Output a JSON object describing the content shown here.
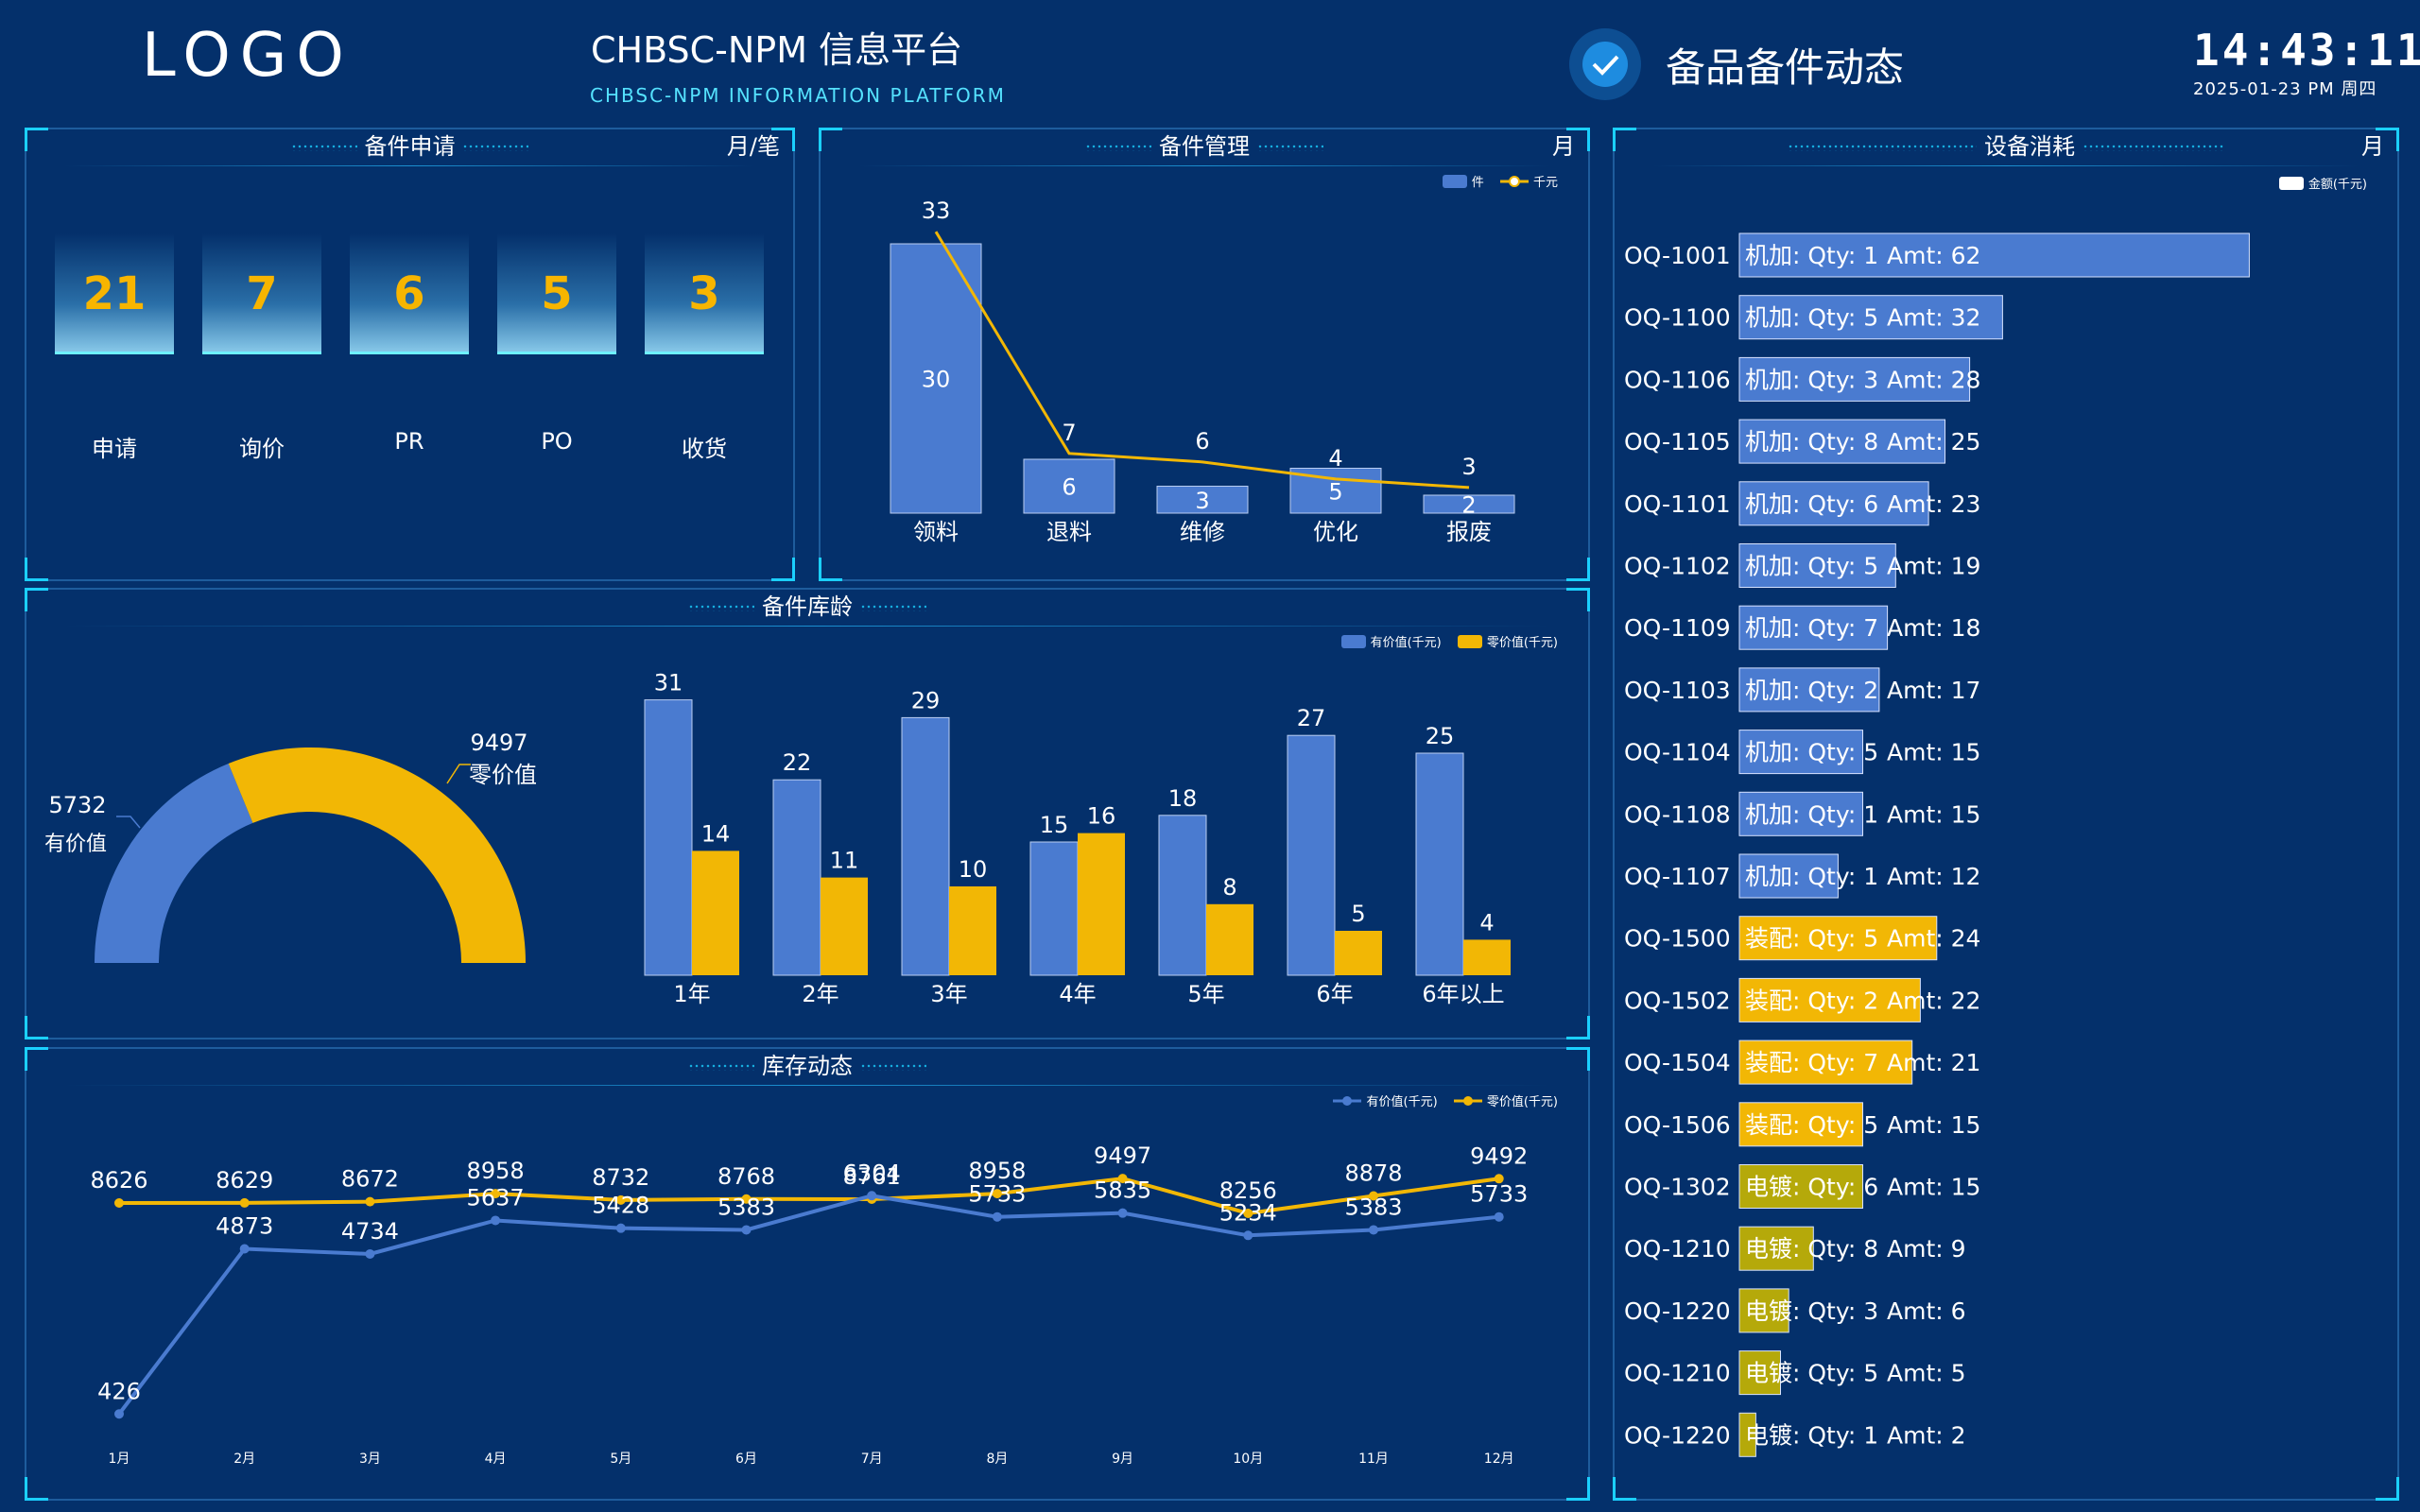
{
  "header": {
    "logo": "LOGO",
    "title": "CHBSC-NPM 信息平台",
    "subtitle": "CHBSC-NPM INFORMATION PLATFORM",
    "module_title": "备品备件动态",
    "module_icon": "badge-check-icon",
    "time": "14:43:11",
    "date": "2025-01-23 PM 周四"
  },
  "colors": {
    "background": "#04306b",
    "blue": "#4a7bd0",
    "yellow": "#f2b705",
    "olive": "#b5a90a",
    "accent": "#1bd0ff"
  },
  "panel_apply": {
    "title": "备件申请",
    "unit": "月/笔",
    "items": [
      {
        "value": "21",
        "label": "申请"
      },
      {
        "value": "7",
        "label": "询价"
      },
      {
        "value": "6",
        "label": "PR"
      },
      {
        "value": "5",
        "label": "PO"
      },
      {
        "value": "3",
        "label": "收货"
      }
    ]
  },
  "panel_manage": {
    "title": "备件管理",
    "unit": "月",
    "legend": [
      "件",
      "千元"
    ],
    "categories": [
      "领料",
      "退料",
      "维修",
      "优化",
      "报废"
    ],
    "bars": [
      30,
      6,
      3,
      5,
      2
    ],
    "line": [
      33,
      7,
      6,
      4,
      3
    ]
  },
  "panel_age": {
    "title": "备件库龄",
    "legend": [
      "有价值(千元)",
      "零价值(千元)"
    ],
    "gauge": {
      "valued": 5732,
      "valued_label": "有价值",
      "zero": 9497,
      "zero_label": "零价值"
    },
    "categories": [
      "1年",
      "2年",
      "3年",
      "4年",
      "5年",
      "6年",
      "6年以上"
    ],
    "valued": [
      31,
      22,
      29,
      15,
      18,
      27,
      25
    ],
    "zero": [
      14,
      11,
      10,
      16,
      8,
      5,
      4
    ]
  },
  "panel_stock": {
    "title": "库存动态",
    "legend": [
      "有价值(千元)",
      "零价值(千元)"
    ],
    "months": [
      "1月",
      "2月",
      "3月",
      "4月",
      "5月",
      "6月",
      "7月",
      "8月",
      "9月",
      "10月",
      "11月",
      "12月"
    ],
    "zero": [
      8626,
      8629,
      8672,
      8958,
      8732,
      8768,
      8761,
      8958,
      9497,
      8256,
      8878,
      9492
    ],
    "valued": [
      426,
      4873,
      4734,
      5637,
      5428,
      5383,
      6304,
      5733,
      5835,
      5234,
      5383,
      5733
    ]
  },
  "panel_consume": {
    "title": "设备消耗",
    "unit": "月",
    "legend": "金额(千元)",
    "rows": [
      {
        "id": "OQ-1001",
        "type": "机加",
        "qty": 1,
        "amt": 62,
        "label": "机加: Qty: 1",
        "amt_label": "Amt: 62"
      },
      {
        "id": "OQ-1100",
        "type": "机加",
        "qty": 5,
        "amt": 32,
        "label": "机加: Qty: 5",
        "amt_label": "Amt: 32"
      },
      {
        "id": "OQ-1106",
        "type": "机加",
        "qty": 3,
        "amt": 28,
        "label": "机加: Qty: 3",
        "amt_label": "Amt: 28"
      },
      {
        "id": "OQ-1105",
        "type": "机加",
        "qty": 8,
        "amt": 25,
        "label": "机加: Qty: 8",
        "amt_label": "Amt: 25"
      },
      {
        "id": "OQ-1101",
        "type": "机加",
        "qty": 6,
        "amt": 23,
        "label": "机加: Qty: 6",
        "amt_label": "Amt: 23"
      },
      {
        "id": "OQ-1102",
        "type": "机加",
        "qty": 5,
        "amt": 19,
        "label": "机加: Qty: 5",
        "amt_label": "Amt: 19"
      },
      {
        "id": "OQ-1109",
        "type": "机加",
        "qty": 7,
        "amt": 18,
        "label": "机加: Qty: 7",
        "amt_label": "Amt: 18"
      },
      {
        "id": "OQ-1103",
        "type": "机加",
        "qty": 2,
        "amt": 17,
        "label": "机加: Qty: 2",
        "amt_label": "Amt: 17"
      },
      {
        "id": "OQ-1104",
        "type": "机加",
        "qty": 5,
        "amt": 15,
        "label": "机加: Qty: 5",
        "amt_label": "Amt: 15"
      },
      {
        "id": "OQ-1108",
        "type": "机加",
        "qty": 1,
        "amt": 15,
        "label": "机加: Qty: 1",
        "amt_label": "Amt: 15"
      },
      {
        "id": "OQ-1107",
        "type": "机加",
        "qty": 1,
        "amt": 12,
        "label": "机加: Qty: 1",
        "amt_label": "Amt: 12"
      },
      {
        "id": "OQ-1500",
        "type": "装配",
        "qty": 5,
        "amt": 24,
        "label": "装配: Qty: 5",
        "amt_label": "Amt: 24"
      },
      {
        "id": "OQ-1502",
        "type": "装配",
        "qty": 2,
        "amt": 22,
        "label": "装配: Qty: 2",
        "amt_label": "Amt: 22"
      },
      {
        "id": "OQ-1504",
        "type": "装配",
        "qty": 7,
        "amt": 21,
        "label": "装配: Qty: 7",
        "amt_label": "Amt: 21"
      },
      {
        "id": "OQ-1506",
        "type": "装配",
        "qty": 5,
        "amt": 15,
        "label": "装配: Qty: 5",
        "amt_label": "Amt: 15"
      },
      {
        "id": "OQ-1302",
        "type": "电镀",
        "qty": 6,
        "amt": 15,
        "label": "电镀: Qty: 6",
        "amt_label": "Amt: 15"
      },
      {
        "id": "OQ-1210",
        "type": "电镀",
        "qty": 8,
        "amt": 9,
        "label": "电镀: Qty: 8",
        "amt_label": "Amt: 9"
      },
      {
        "id": "OQ-1220",
        "type": "电镀",
        "qty": 3,
        "amt": 6,
        "label": "电镀: Qty: 3",
        "amt_label": "Amt: 6"
      },
      {
        "id": "OQ-1210",
        "type": "电镀",
        "qty": 5,
        "amt": 5,
        "label": "电镀: Qty: 5",
        "amt_label": "Amt: 5"
      },
      {
        "id": "OQ-1220",
        "type": "电镀",
        "qty": 1,
        "amt": 2,
        "label": "电镀: Qty: 1",
        "amt_label": "Amt: 2"
      }
    ]
  },
  "chart_data": [
    {
      "type": "bar",
      "title": "备件管理",
      "categories": [
        "领料",
        "退料",
        "维修",
        "优化",
        "报废"
      ],
      "series": [
        {
          "name": "件",
          "values": [
            30,
            6,
            3,
            5,
            2
          ]
        },
        {
          "name": "千元",
          "type": "line",
          "values": [
            33,
            7,
            6,
            4,
            3
          ]
        }
      ]
    },
    {
      "type": "pie",
      "title": "备件库龄",
      "categories": [
        "有价值",
        "零价值"
      ],
      "values": [
        5732,
        9497
      ]
    },
    {
      "type": "bar",
      "title": "备件库龄",
      "categories": [
        "1年",
        "2年",
        "3年",
        "4年",
        "5年",
        "6年",
        "6年以上"
      ],
      "series": [
        {
          "name": "有价值(千元)",
          "values": [
            31,
            22,
            29,
            15,
            18,
            27,
            25
          ]
        },
        {
          "name": "零价值(千元)",
          "values": [
            14,
            11,
            10,
            16,
            8,
            5,
            4
          ]
        }
      ]
    },
    {
      "type": "line",
      "title": "库存动态",
      "categories": [
        "1月",
        "2月",
        "3月",
        "4月",
        "5月",
        "6月",
        "7月",
        "8月",
        "9月",
        "10月",
        "11月",
        "12月"
      ],
      "series": [
        {
          "name": "有价值(千元)",
          "values": [
            426,
            4873,
            4734,
            5637,
            5428,
            5383,
            6304,
            5733,
            5835,
            5234,
            5383,
            5733
          ]
        },
        {
          "name": "零价值(千元)",
          "values": [
            8626,
            8629,
            8672,
            8958,
            8732,
            8768,
            8761,
            8958,
            9497,
            8256,
            8878,
            9492
          ]
        }
      ]
    },
    {
      "type": "bar",
      "title": "设备消耗",
      "categories": [
        "OQ-1001",
        "OQ-1100",
        "OQ-1106",
        "OQ-1105",
        "OQ-1101",
        "OQ-1102",
        "OQ-1109",
        "OQ-1103",
        "OQ-1104",
        "OQ-1108",
        "OQ-1107",
        "OQ-1500",
        "OQ-1502",
        "OQ-1504",
        "OQ-1506",
        "OQ-1302",
        "OQ-1210",
        "OQ-1220",
        "OQ-1210",
        "OQ-1220"
      ],
      "series": [
        {
          "name": "金额(千元)",
          "values": [
            62,
            32,
            28,
            25,
            23,
            19,
            18,
            17,
            15,
            15,
            12,
            24,
            22,
            21,
            15,
            15,
            9,
            6,
            5,
            2
          ]
        }
      ]
    }
  ]
}
